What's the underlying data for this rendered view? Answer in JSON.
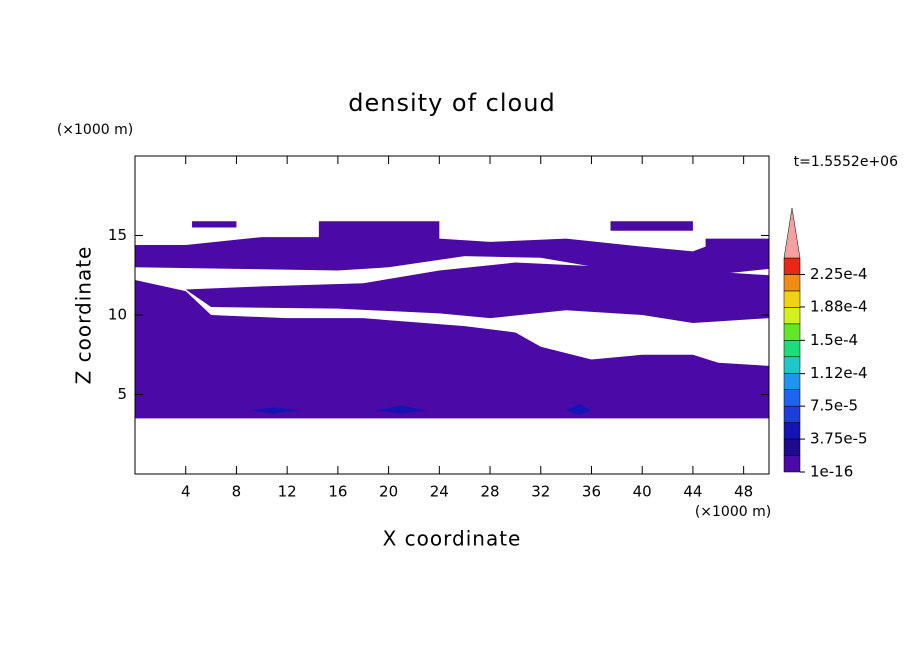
{
  "chart_data": {
    "type": "contour",
    "title": "density of cloud",
    "x_label": "X coordinate",
    "y_label": "Z coordinate",
    "x_unit": "(×1000 m)",
    "y_unit": "(×1000 m)",
    "time_label": "t=1.5552e+06",
    "xlim": [
      0,
      50
    ],
    "xticks": [
      4,
      8,
      12,
      16,
      20,
      24,
      28,
      32,
      36,
      40,
      44,
      48
    ],
    "ylim": [
      0,
      20
    ],
    "yticks": [
      5,
      10,
      15
    ],
    "regions": [
      {
        "level": 1e-16,
        "x": [
          0,
          4,
          6,
          12,
          18,
          26,
          30,
          32,
          36,
          40,
          44,
          46,
          50,
          50,
          0
        ],
        "z": [
          12.2,
          11.5,
          10,
          9.8,
          9.8,
          9.3,
          8.9,
          8,
          7.2,
          7.5,
          7.5,
          7,
          6.8,
          3.5,
          3.5
        ]
      },
      {
        "level": 1e-16,
        "x": [
          6,
          16,
          24,
          28,
          34,
          40,
          44,
          50,
          50,
          44,
          38,
          30,
          24,
          18,
          10,
          4
        ],
        "z": [
          10.5,
          10.4,
          10.1,
          9.8,
          10.3,
          10,
          9.5,
          9.8,
          12.5,
          12.8,
          13,
          13.3,
          12.8,
          12,
          11.8,
          11.6
        ]
      },
      {
        "level": 1e-16,
        "x": [
          0,
          8,
          16,
          20,
          26,
          32,
          40,
          44,
          50,
          50,
          46,
          44,
          40,
          34,
          28,
          24,
          20,
          16,
          10,
          4,
          0
        ],
        "z": [
          13,
          12.9,
          12.8,
          13,
          13.7,
          13.6,
          12.5,
          12.4,
          12.9,
          14.6,
          14.6,
          14,
          14.3,
          14.8,
          14.6,
          14.8,
          14.8,
          14.9,
          14.9,
          14.4,
          14.4
        ]
      },
      {
        "level": 1e-16,
        "x": [
          4.5,
          8,
          8,
          4.5
        ],
        "z": [
          15.5,
          15.5,
          15.9,
          15.9
        ]
      },
      {
        "level": 1e-16,
        "x": [
          14.5,
          24,
          24,
          14.5
        ],
        "z": [
          14.6,
          14.6,
          15.9,
          15.9
        ]
      },
      {
        "level": 1e-16,
        "x": [
          37.5,
          44,
          44,
          37.5
        ],
        "z": [
          15.3,
          15.3,
          15.9,
          15.9
        ]
      },
      {
        "level": 1e-16,
        "x": [
          45,
          50,
          50,
          45
        ],
        "z": [
          14.2,
          14.2,
          14.8,
          14.8
        ]
      },
      {
        "level": 3.75e-05,
        "x": [
          9,
          11,
          13,
          11
        ],
        "z": [
          4,
          3.8,
          4,
          4.2
        ]
      },
      {
        "level": 3.75e-05,
        "x": [
          19,
          21,
          23,
          21
        ],
        "z": [
          4,
          3.8,
          4,
          4.3
        ]
      },
      {
        "level": 3.75e-05,
        "x": [
          34,
          35,
          36,
          35
        ],
        "z": [
          4,
          3.7,
          4,
          4.4
        ]
      }
    ],
    "colorbar": {
      "colors": [
        "#4b0aa5",
        "#1e0a8c",
        "#1414b4",
        "#1e3cdc",
        "#1e64f0",
        "#1e96f0",
        "#1ec8c8",
        "#1edc78",
        "#64e628",
        "#d2f01e",
        "#f0d214",
        "#f08c14",
        "#e62814"
      ],
      "extend_color": "#f4a0a0",
      "clim": [
        1e-16,
        0.00024375
      ],
      "ticks": [
        {
          "value": 1e-16,
          "label": "1e-16"
        },
        {
          "value": 3.75e-05,
          "label": "3.75e-5"
        },
        {
          "value": 7.5e-05,
          "label": "7.5e-5"
        },
        {
          "value": 0.000112,
          "label": "1.12e-4"
        },
        {
          "value": 0.00015,
          "label": "1.5e-4"
        },
        {
          "value": 0.000188,
          "label": "1.88e-4"
        },
        {
          "value": 0.000225,
          "label": "2.25e-4"
        }
      ]
    }
  }
}
